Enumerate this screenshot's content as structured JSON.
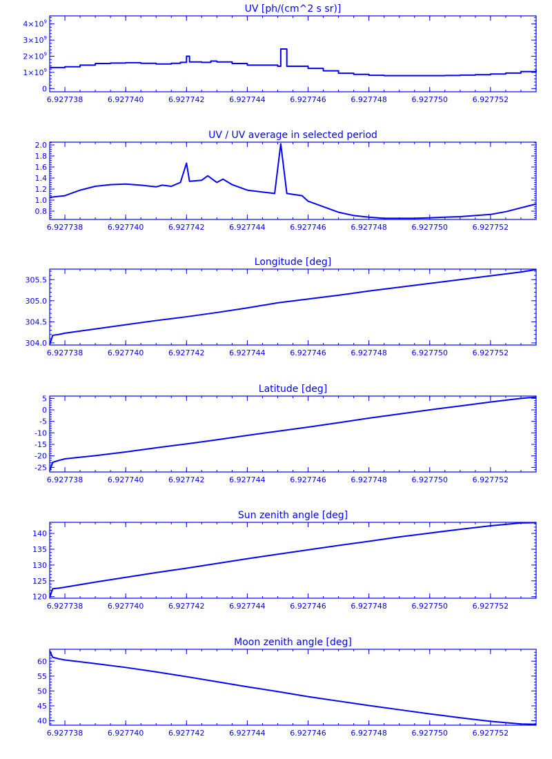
{
  "chart_data": [
    {
      "type": "line",
      "title": "UV [ph/(cm^2 s sr)]",
      "xlim": [
        6.9277375,
        6.9277535
      ],
      "ylim": [
        -200000000,
        4500000000
      ],
      "xticks": [
        6.927738,
        6.92774,
        6.927742,
        6.927744,
        6.927746,
        6.927748,
        6.92775,
        6.927752
      ],
      "xtick_labels": [
        "6.927738",
        "6.927740",
        "6.927742",
        "6.927744",
        "6.927746",
        "6.927748",
        "6.927750",
        "6.927752"
      ],
      "yticks": [
        0,
        1000000000,
        2000000000,
        3000000000,
        4000000000
      ],
      "ytick_labels": [
        {
          "mantissa": "0",
          "exp": ""
        },
        {
          "mantissa": "1×10",
          "exp": "9"
        },
        {
          "mantissa": "2×10",
          "exp": "9"
        },
        {
          "mantissa": "3×10",
          "exp": "9"
        },
        {
          "mantissa": "4×10",
          "exp": "9"
        }
      ],
      "step": true,
      "series": [
        {
          "x": [
            6.9277375,
            6.927738,
            6.9277385,
            6.927739,
            6.9277395,
            6.92774,
            6.9277405,
            6.927741,
            6.9277415,
            6.9277418,
            6.927742,
            6.9277421,
            6.9277425,
            6.9277428,
            6.927743,
            6.9277435,
            6.927744,
            6.927745,
            6.9277451,
            6.9277453,
            6.927746,
            6.9277465,
            6.927747,
            6.9277475,
            6.927748,
            6.9277485,
            6.927749,
            6.9277495,
            6.92775,
            6.9277505,
            6.927751,
            6.9277515,
            6.927752,
            6.9277525,
            6.927753,
            6.9277535
          ],
          "y": [
            1300000000,
            1350000000,
            1450000000,
            1550000000,
            1580000000,
            1600000000,
            1560000000,
            1520000000,
            1560000000,
            1620000000,
            2000000000,
            1650000000,
            1620000000,
            1700000000,
            1650000000,
            1550000000,
            1450000000,
            1380000000,
            2450000000,
            1380000000,
            1250000000,
            1100000000,
            950000000,
            880000000,
            820000000,
            800000000,
            800000000,
            800000000,
            800000000,
            810000000,
            830000000,
            860000000,
            900000000,
            960000000,
            1050000000,
            1150000000
          ]
        }
      ]
    },
    {
      "type": "line",
      "title": "UV / UV average in selected period",
      "xlim": [
        6.9277375,
        6.9277535
      ],
      "ylim": [
        0.65,
        2.05
      ],
      "xticks": [
        6.927738,
        6.92774,
        6.927742,
        6.927744,
        6.927746,
        6.927748,
        6.92775,
        6.927752
      ],
      "xtick_labels": [
        "6.927738",
        "6.927740",
        "6.927742",
        "6.927744",
        "6.927746",
        "6.927748",
        "6.927750",
        "6.927752"
      ],
      "yticks": [
        0.8,
        1.0,
        1.2,
        1.4,
        1.6,
        1.8,
        2.0
      ],
      "ytick_labels": [
        {
          "mantissa": "0.8",
          "exp": ""
        },
        {
          "mantissa": "1.0",
          "exp": ""
        },
        {
          "mantissa": "1.2",
          "exp": ""
        },
        {
          "mantissa": "1.4",
          "exp": ""
        },
        {
          "mantissa": "1.6",
          "exp": ""
        },
        {
          "mantissa": "1.8",
          "exp": ""
        },
        {
          "mantissa": "2.0",
          "exp": ""
        }
      ],
      "step": false,
      "series": [
        {
          "x": [
            6.9277375,
            6.927738,
            6.9277385,
            6.927739,
            6.9277395,
            6.92774,
            6.9277405,
            6.927741,
            6.9277412,
            6.9277415,
            6.9277418,
            6.927742,
            6.9277421,
            6.9277425,
            6.9277427,
            6.927743,
            6.9277432,
            6.9277435,
            6.927744,
            6.9277449,
            6.9277451,
            6.9277453,
            6.9277458,
            6.927746,
            6.9277465,
            6.927747,
            6.9277475,
            6.927748,
            6.9277485,
            6.927749,
            6.9277495,
            6.92775,
            6.9277505,
            6.927751,
            6.9277515,
            6.927752,
            6.9277525,
            6.927753,
            6.9277535
          ],
          "y": [
            1.05,
            1.08,
            1.18,
            1.25,
            1.28,
            1.29,
            1.27,
            1.24,
            1.27,
            1.25,
            1.32,
            1.67,
            1.34,
            1.36,
            1.44,
            1.32,
            1.38,
            1.28,
            1.18,
            1.12,
            2.02,
            1.12,
            1.08,
            0.98,
            0.88,
            0.78,
            0.72,
            0.69,
            0.67,
            0.67,
            0.67,
            0.68,
            0.69,
            0.7,
            0.72,
            0.74,
            0.79,
            0.86,
            0.93
          ]
        }
      ]
    },
    {
      "type": "line",
      "title": "Longitude [deg]",
      "xlim": [
        6.9277375,
        6.9277535
      ],
      "ylim": [
        303.95,
        305.75
      ],
      "xticks": [
        6.927738,
        6.92774,
        6.927742,
        6.927744,
        6.927746,
        6.927748,
        6.92775,
        6.927752
      ],
      "xtick_labels": [
        "6.927738",
        "6.927740",
        "6.927742",
        "6.927744",
        "6.927746",
        "6.927748",
        "6.927750",
        "6.927752"
      ],
      "yticks": [
        304.0,
        304.5,
        305.0,
        305.5
      ],
      "ytick_labels": [
        {
          "mantissa": "304.0",
          "exp": ""
        },
        {
          "mantissa": "304.5",
          "exp": ""
        },
        {
          "mantissa": "305.0",
          "exp": ""
        },
        {
          "mantissa": "305.5",
          "exp": ""
        }
      ],
      "step": false,
      "series": [
        {
          "x": [
            6.9277375,
            6.9277376,
            6.9277378,
            6.927738,
            6.927739,
            6.92774,
            6.927741,
            6.927742,
            6.927743,
            6.927744,
            6.927745,
            6.927746,
            6.927747,
            6.927748,
            6.927749,
            6.92775,
            6.927751,
            6.927752,
            6.927753,
            6.9277535
          ],
          "y": [
            303.96,
            304.18,
            304.2,
            304.23,
            304.33,
            304.43,
            304.53,
            304.62,
            304.72,
            304.83,
            304.95,
            305.04,
            305.13,
            305.23,
            305.32,
            305.41,
            305.5,
            305.59,
            305.68,
            305.74
          ]
        }
      ]
    },
    {
      "type": "line",
      "title": "Latitude [deg]",
      "xlim": [
        6.9277375,
        6.9277535
      ],
      "ylim": [
        -27,
        6
      ],
      "xticks": [
        6.927738,
        6.92774,
        6.927742,
        6.927744,
        6.927746,
        6.927748,
        6.92775,
        6.927752
      ],
      "xtick_labels": [
        "6.927738",
        "6.927740",
        "6.927742",
        "6.927744",
        "6.927746",
        "6.927748",
        "6.927750",
        "6.927752"
      ],
      "yticks": [
        -25,
        -20,
        -15,
        -10,
        -5,
        0,
        5
      ],
      "ytick_labels": [
        {
          "mantissa": "-25",
          "exp": ""
        },
        {
          "mantissa": "-20",
          "exp": ""
        },
        {
          "mantissa": "-15",
          "exp": ""
        },
        {
          "mantissa": "-10",
          "exp": ""
        },
        {
          "mantissa": "-5",
          "exp": ""
        },
        {
          "mantissa": "0",
          "exp": ""
        },
        {
          "mantissa": "5",
          "exp": ""
        }
      ],
      "step": false,
      "series": [
        {
          "x": [
            6.9277375,
            6.9277376,
            6.9277378,
            6.927738,
            6.927739,
            6.92774,
            6.927741,
            6.927742,
            6.927743,
            6.927744,
            6.927745,
            6.927746,
            6.927747,
            6.927748,
            6.927749,
            6.92775,
            6.927751,
            6.927752,
            6.927753,
            6.9277535
          ],
          "y": [
            -26.5,
            -22.8,
            -22.0,
            -21.3,
            -19.9,
            -18.3,
            -16.5,
            -14.8,
            -13.0,
            -11.1,
            -9.3,
            -7.5,
            -5.6,
            -3.6,
            -1.8,
            0.0,
            1.7,
            3.4,
            5.0,
            5.5
          ]
        }
      ]
    },
    {
      "type": "line",
      "title": "Sun zenith angle [deg]",
      "xlim": [
        6.9277375,
        6.9277535
      ],
      "ylim": [
        119.5,
        143.5
      ],
      "xticks": [
        6.927738,
        6.92774,
        6.927742,
        6.927744,
        6.927746,
        6.927748,
        6.92775,
        6.927752
      ],
      "xtick_labels": [
        "6.927738",
        "6.927740",
        "6.927742",
        "6.927744",
        "6.927746",
        "6.927748",
        "6.927750",
        "6.927752"
      ],
      "yticks": [
        120,
        125,
        130,
        135,
        140
      ],
      "ytick_labels": [
        {
          "mantissa": "120",
          "exp": ""
        },
        {
          "mantissa": "125",
          "exp": ""
        },
        {
          "mantissa": "130",
          "exp": ""
        },
        {
          "mantissa": "135",
          "exp": ""
        },
        {
          "mantissa": "140",
          "exp": ""
        }
      ],
      "step": false,
      "series": [
        {
          "x": [
            6.9277375,
            6.9277376,
            6.9277378,
            6.927738,
            6.927739,
            6.92774,
            6.927741,
            6.927742,
            6.927743,
            6.927744,
            6.927745,
            6.927746,
            6.927747,
            6.927748,
            6.927749,
            6.92775,
            6.927751,
            6.927752,
            6.927753,
            6.9277535
          ],
          "y": [
            119.8,
            122.5,
            122.7,
            123.0,
            124.6,
            126.1,
            127.6,
            129.0,
            130.5,
            132.0,
            133.4,
            134.8,
            136.2,
            137.5,
            138.9,
            140.1,
            141.3,
            142.4,
            143.3,
            143.4
          ]
        }
      ]
    },
    {
      "type": "line",
      "title": "Moon zenith angle [deg]",
      "xlim": [
        6.9277375,
        6.9277535
      ],
      "ylim": [
        38.5,
        64
      ],
      "xticks": [
        6.927738,
        6.92774,
        6.927742,
        6.927744,
        6.927746,
        6.927748,
        6.92775,
        6.927752
      ],
      "xtick_labels": [
        "6.927738",
        "6.927740",
        "6.927742",
        "6.927744",
        "6.927746",
        "6.927748",
        "6.927750",
        "6.927752"
      ],
      "yticks": [
        40,
        45,
        50,
        55,
        60
      ],
      "ytick_labels": [
        {
          "mantissa": "40",
          "exp": ""
        },
        {
          "mantissa": "45",
          "exp": ""
        },
        {
          "mantissa": "50",
          "exp": ""
        },
        {
          "mantissa": "55",
          "exp": ""
        },
        {
          "mantissa": "60",
          "exp": ""
        }
      ],
      "step": false,
      "series": [
        {
          "x": [
            6.9277375,
            6.9277376,
            6.9277378,
            6.927738,
            6.927739,
            6.92774,
            6.927741,
            6.927742,
            6.927743,
            6.927744,
            6.927745,
            6.927746,
            6.927747,
            6.927748,
            6.927749,
            6.92775,
            6.927751,
            6.927752,
            6.927753,
            6.9277535
          ],
          "y": [
            63.5,
            61.3,
            60.8,
            60.4,
            59.2,
            57.9,
            56.4,
            54.8,
            53.1,
            51.4,
            49.8,
            48.1,
            46.6,
            45.1,
            43.7,
            42.3,
            41.0,
            39.8,
            38.9,
            38.8
          ]
        }
      ]
    }
  ]
}
